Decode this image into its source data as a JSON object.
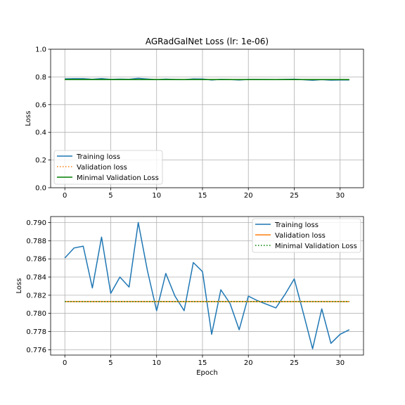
{
  "chart_data": [
    {
      "type": "line",
      "title": "AGRadGalNet Loss (lr: 1e-06)",
      "xlabel": "",
      "ylabel": "Loss",
      "xlim": [
        -1.55,
        32.55
      ],
      "ylim": [
        0.0,
        1.0
      ],
      "xticks": [
        0,
        5,
        10,
        15,
        20,
        25,
        30
      ],
      "xtick_labels": [
        "0",
        "5",
        "10",
        "15",
        "20",
        "25",
        "30"
      ],
      "yticks": [
        0.0,
        0.2,
        0.4,
        0.6,
        0.8,
        1.0
      ],
      "ytick_labels": [
        "0.0",
        "0.2",
        "0.4",
        "0.6",
        "0.8",
        "1.0"
      ],
      "grid": true,
      "legend_position": "lower-left",
      "x": [
        0,
        1,
        2,
        3,
        4,
        5,
        6,
        7,
        8,
        9,
        10,
        11,
        12,
        13,
        14,
        15,
        16,
        17,
        18,
        19,
        20,
        21,
        22,
        23,
        24,
        25,
        26,
        27,
        28,
        29,
        30,
        31
      ],
      "series": [
        {
          "name": "Training loss",
          "color": "#1f77b4",
          "style": "solid",
          "values": [
            0.7861,
            0.7872,
            0.7874,
            0.7828,
            0.7884,
            0.7822,
            0.784,
            0.7829,
            0.79,
            0.7847,
            0.7803,
            0.7844,
            0.7819,
            0.7803,
            0.7856,
            0.7846,
            0.7777,
            0.7826,
            0.7811,
            0.7782,
            0.7819,
            0.7814,
            0.781,
            0.7806,
            0.7821,
            0.7838,
            0.78,
            0.7761,
            0.7805,
            0.7767,
            0.7777,
            0.7782
          ]
        },
        {
          "name": "Validation loss",
          "color": "#ff7f0e",
          "style": "dotted",
          "values": [
            0.7813,
            0.7813,
            0.7813,
            0.7813,
            0.7813,
            0.7813,
            0.7813,
            0.7813,
            0.7813,
            0.7813,
            0.7813,
            0.7813,
            0.7813,
            0.7813,
            0.7813,
            0.7813,
            0.7813,
            0.7813,
            0.7813,
            0.7813,
            0.7813,
            0.7813,
            0.7813,
            0.7813,
            0.7813,
            0.7813,
            0.7813,
            0.7813,
            0.7813,
            0.7813,
            0.7813,
            0.7813
          ]
        },
        {
          "name": "Minimal Validation Loss",
          "color": "#008000",
          "style": "solid",
          "values": [
            0.7813,
            0.7813,
            0.7813,
            0.7813,
            0.7813,
            0.7813,
            0.7813,
            0.7813,
            0.7813,
            0.7813,
            0.7813,
            0.7813,
            0.7813,
            0.7813,
            0.7813,
            0.7813,
            0.7813,
            0.7813,
            0.7813,
            0.7813,
            0.7813,
            0.7813,
            0.7813,
            0.7813,
            0.7813,
            0.7813,
            0.7813,
            0.7813,
            0.7813,
            0.7813,
            0.7813,
            0.7813
          ]
        }
      ]
    },
    {
      "type": "line",
      "title": "",
      "xlabel": "Epoch",
      "ylabel": "Loss",
      "xlim": [
        -1.55,
        32.55
      ],
      "ylim": [
        0.77541,
        0.79066
      ],
      "xticks": [
        0,
        5,
        10,
        15,
        20,
        25,
        30
      ],
      "xtick_labels": [
        "0",
        "5",
        "10",
        "15",
        "20",
        "25",
        "30"
      ],
      "yticks": [
        0.776,
        0.778,
        0.78,
        0.782,
        0.784,
        0.786,
        0.788,
        0.79
      ],
      "ytick_labels": [
        "0.776",
        "0.778",
        "0.780",
        "0.782",
        "0.784",
        "0.786",
        "0.788",
        "0.790"
      ],
      "grid": true,
      "legend_position": "upper-right",
      "x": [
        0,
        1,
        2,
        3,
        4,
        5,
        6,
        7,
        8,
        9,
        10,
        11,
        12,
        13,
        14,
        15,
        16,
        17,
        18,
        19,
        20,
        21,
        22,
        23,
        24,
        25,
        26,
        27,
        28,
        29,
        30,
        31
      ],
      "series": [
        {
          "name": "Training loss",
          "color": "#1f77b4",
          "style": "solid",
          "values": [
            0.7861,
            0.7872,
            0.7874,
            0.7828,
            0.7884,
            0.7822,
            0.784,
            0.7829,
            0.79,
            0.7847,
            0.7803,
            0.7844,
            0.7819,
            0.7803,
            0.7856,
            0.7846,
            0.7777,
            0.7826,
            0.7811,
            0.7782,
            0.7819,
            0.7814,
            0.781,
            0.7806,
            0.7821,
            0.7838,
            0.78,
            0.7761,
            0.7805,
            0.7767,
            0.7777,
            0.7782
          ]
        },
        {
          "name": "Validation loss",
          "color": "#ff7f0e",
          "style": "solid",
          "values": [
            0.7813,
            0.7813,
            0.7813,
            0.7813,
            0.7813,
            0.7813,
            0.7813,
            0.7813,
            0.7813,
            0.7813,
            0.7813,
            0.7813,
            0.7813,
            0.7813,
            0.7813,
            0.7813,
            0.7813,
            0.7813,
            0.7813,
            0.7813,
            0.7813,
            0.7813,
            0.7813,
            0.7813,
            0.7813,
            0.7813,
            0.7813,
            0.7813,
            0.7813,
            0.7813,
            0.7813,
            0.7813
          ]
        },
        {
          "name": "Minimal Validation Loss",
          "color": "#008000",
          "style": "dotted",
          "values": [
            0.7813,
            0.7813,
            0.7813,
            0.7813,
            0.7813,
            0.7813,
            0.7813,
            0.7813,
            0.7813,
            0.7813,
            0.7813,
            0.7813,
            0.7813,
            0.7813,
            0.7813,
            0.7813,
            0.7813,
            0.7813,
            0.7813,
            0.7813,
            0.7813,
            0.7813,
            0.7813,
            0.7813,
            0.7813,
            0.7813,
            0.7813,
            0.7813,
            0.7813,
            0.7813,
            0.7813,
            0.7813
          ]
        }
      ]
    }
  ]
}
